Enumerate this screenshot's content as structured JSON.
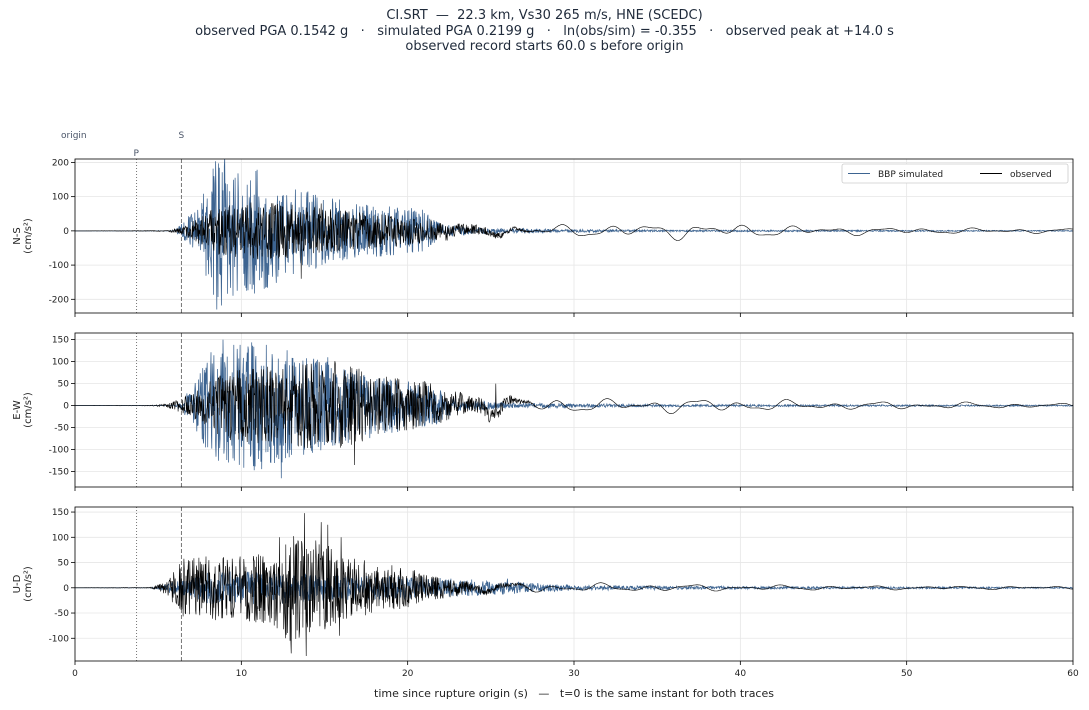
{
  "title_lines": [
    "CI.SRT  —  22.3 km, Vs30 265 m/s, HNE (SCEDC)",
    "observed PGA 0.1542 g   ·   simulated PGA 0.2199 g   ·   ln(obs/sim) = -0.355   ·   observed peak at +14.0 s",
    "observed record starts 60.0 s before origin"
  ],
  "chart_data": {
    "type": "line",
    "xlabel": "time since rupture origin (s)   —   t=0 is the same instant for both traces",
    "xlim": [
      0,
      60
    ],
    "xticks": [
      0,
      10,
      20,
      30,
      40,
      50,
      60
    ],
    "grid": true,
    "legend": {
      "location": "upper-right",
      "entries": [
        "BBP simulated",
        "observed"
      ]
    },
    "colors": {
      "simulated": "#3d6491",
      "observed": "#000000",
      "markers": "#777777"
    },
    "markers": [
      {
        "label": "origin",
        "t": 0
      },
      {
        "label": "P",
        "t": 3.7,
        "style": "dotted"
      },
      {
        "label": "S",
        "t": 6.4,
        "style": "dashed"
      }
    ],
    "panels": [
      {
        "component": "N-S",
        "unit": "(cm/s²)",
        "ylim": [
          -240,
          210
        ],
        "yticks": [
          -200,
          -100,
          0,
          100,
          200
        ],
        "series": [
          {
            "name": "BBP simulated",
            "key": "sim",
            "envelope": [
              [
                0,
                0
              ],
              [
                6,
                0
              ],
              [
                7.5,
                60
              ],
              [
                8.5,
                180
              ],
              [
                9.5,
                150
              ],
              [
                11,
                140
              ],
              [
                13,
                100
              ],
              [
                16,
                70
              ],
              [
                19,
                55
              ],
              [
                21,
                50
              ],
              [
                22,
                15
              ],
              [
                24,
                8
              ],
              [
                28,
                4
              ],
              [
                35,
                2
              ],
              [
                60,
                1
              ]
            ],
            "peaks": [
              [
                8.3,
                182
              ],
              [
                9.8,
                168
              ],
              [
                8.8,
                -218
              ],
              [
                10.2,
                -160
              ],
              [
                11.6,
                -115
              ],
              [
                12.8,
                -90
              ]
            ]
          },
          {
            "name": "observed",
            "key": "obs",
            "envelope": [
              [
                0,
                0
              ],
              [
                5.5,
                1
              ],
              [
                6.5,
                8
              ],
              [
                7.5,
                35
              ],
              [
                9,
                60
              ],
              [
                11,
                65
              ],
              [
                13,
                62
              ],
              [
                15,
                50
              ],
              [
                18,
                40
              ],
              [
                21,
                30
              ],
              [
                24,
                22
              ],
              [
                27,
                20
              ],
              [
                30,
                18
              ],
              [
                37,
                25
              ],
              [
                40,
                20
              ],
              [
                45,
                14
              ],
              [
                50,
                10
              ],
              [
                55,
                8
              ],
              [
                60,
                7
              ]
            ],
            "peaks": [
              [
                13.6,
                -140
              ],
              [
                12.5,
                70
              ],
              [
                14.8,
                80
              ]
            ]
          }
        ]
      },
      {
        "component": "E-W",
        "unit": "(cm/s²)",
        "ylim": [
          -185,
          165
        ],
        "yticks": [
          -150,
          -100,
          -50,
          0,
          50,
          100,
          150
        ],
        "series": [
          {
            "name": "BBP simulated",
            "key": "sim",
            "envelope": [
              [
                0,
                0
              ],
              [
                6,
                0
              ],
              [
                7,
                30
              ],
              [
                8,
                90
              ],
              [
                9,
                110
              ],
              [
                11,
                115
              ],
              [
                13,
                95
              ],
              [
                16,
                70
              ],
              [
                19,
                50
              ],
              [
                22,
                30
              ],
              [
                23,
                10
              ],
              [
                26,
                5
              ],
              [
                35,
                2
              ],
              [
                60,
                1
              ]
            ],
            "peaks": [
              [
                8.9,
                150
              ],
              [
                11.5,
                138
              ],
              [
                12.4,
                -165
              ],
              [
                9.5,
                -120
              ],
              [
                10.3,
                100
              ],
              [
                15.2,
                110
              ]
            ]
          },
          {
            "name": "observed",
            "key": "obs",
            "envelope": [
              [
                0,
                0
              ],
              [
                4.5,
                0.5
              ],
              [
                5.5,
                3
              ],
              [
                7,
                20
              ],
              [
                9,
                60
              ],
              [
                12,
                70
              ],
              [
                14,
                75
              ],
              [
                16,
                80
              ],
              [
                18,
                55
              ],
              [
                21,
                45
              ],
              [
                24,
                30
              ],
              [
                25.5,
                35
              ],
              [
                28,
                18
              ],
              [
                32,
                15
              ],
              [
                35,
                18
              ],
              [
                40,
                15
              ],
              [
                45,
                10
              ],
              [
                50,
                9
              ],
              [
                55,
                7
              ],
              [
                60,
                5
              ]
            ],
            "peaks": [
              [
                16.8,
                -135
              ],
              [
                14.2,
                95
              ],
              [
                25.3,
                50
              ]
            ]
          }
        ]
      },
      {
        "component": "U-D",
        "unit": "(cm/s²)",
        "ylim": [
          -145,
          160
        ],
        "yticks": [
          -100,
          -50,
          0,
          50,
          100,
          150
        ],
        "series": [
          {
            "name": "BBP simulated",
            "key": "sim",
            "envelope": [
              [
                0,
                0
              ],
              [
                4.5,
                0
              ],
              [
                6,
                10
              ],
              [
                8,
                25
              ],
              [
                12,
                25
              ],
              [
                16,
                20
              ],
              [
                22,
                15
              ],
              [
                26,
                10
              ],
              [
                30,
                4
              ],
              [
                40,
                2
              ],
              [
                60,
                1
              ]
            ],
            "peaks": [
              [
                26.0,
                18
              ]
            ]
          },
          {
            "name": "observed",
            "key": "obs",
            "envelope": [
              [
                0,
                0
              ],
              [
                4.5,
                0.5
              ],
              [
                5.5,
                10
              ],
              [
                6.5,
                45
              ],
              [
                8,
                50
              ],
              [
                10,
                50
              ],
              [
                12,
                60
              ],
              [
                13,
                90
              ],
              [
                14,
                80
              ],
              [
                16,
                55
              ],
              [
                18,
                40
              ],
              [
                21,
                25
              ],
              [
                24,
                15
              ],
              [
                26,
                12
              ],
              [
                30,
                9
              ],
              [
                35,
                8
              ],
              [
                40,
                6
              ],
              [
                50,
                4
              ],
              [
                60,
                3
              ]
            ],
            "peaks": [
              [
                13.8,
                148
              ],
              [
                13.0,
                -130
              ],
              [
                13.9,
                -135
              ],
              [
                14.8,
                130
              ],
              [
                15.2,
                125
              ],
              [
                12.3,
                100
              ],
              [
                16.0,
                100
              ],
              [
                15.9,
                -95
              ]
            ]
          }
        ]
      }
    ]
  }
}
